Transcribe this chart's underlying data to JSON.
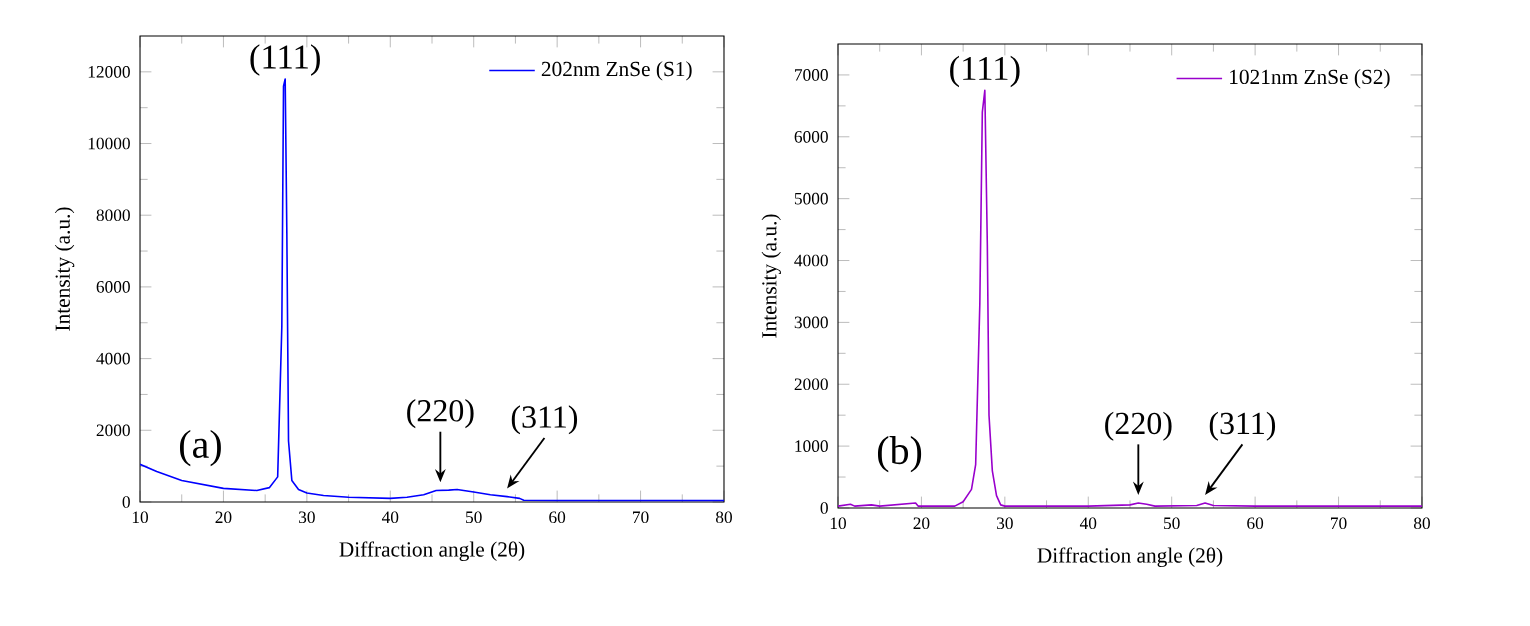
{
  "chart_data": [
    {
      "type": "line",
      "xlabel": "Diffraction angle (2θ)",
      "ylabel": "Intensity (a.u.)",
      "xlim": [
        10,
        80
      ],
      "ylim": [
        0,
        13000
      ],
      "xticks": [
        10,
        20,
        30,
        40,
        50,
        60,
        70,
        80
      ],
      "yticks": [
        0,
        2000,
        4000,
        6000,
        8000,
        10000,
        12000
      ],
      "legend": "top right",
      "grid": false,
      "marker": "none",
      "series": [
        {
          "name": "202nm ZnSe (S1)",
          "color": "#0000ff",
          "x": [
            10,
            12,
            15,
            20,
            24,
            25.5,
            26.5,
            27,
            27.2,
            27.4,
            27.6,
            27.8,
            28.2,
            29,
            30,
            32,
            35,
            40,
            42,
            44,
            45.5,
            47,
            48,
            50,
            52,
            54,
            55.5,
            56,
            60,
            70,
            80
          ],
          "values": [
            1050,
            850,
            600,
            380,
            320,
            400,
            700,
            4900,
            11600,
            11800,
            7500,
            1700,
            600,
            350,
            250,
            180,
            130,
            100,
            130,
            200,
            320,
            330,
            350,
            280,
            200,
            150,
            100,
            50,
            40,
            40,
            40
          ]
        }
      ],
      "annotations": [
        {
          "text": "(111)",
          "x": 27.4,
          "y": 11800
        },
        "(a)",
        {
          "text": "(220)",
          "x": 46,
          "y": 323
        },
        {
          "text": "(311)",
          "x": 54,
          "y": 150
        }
      ]
    },
    {
      "type": "line",
      "xlabel": "Diffraction angle (2θ)",
      "ylabel": "Intensity (a.u.)",
      "xlim": [
        10,
        80
      ],
      "ylim": [
        0,
        7500
      ],
      "xticks": [
        10,
        20,
        30,
        40,
        50,
        60,
        70,
        80
      ],
      "yticks": [
        0,
        1000,
        2000,
        3000,
        4000,
        5000,
        6000,
        7000
      ],
      "legend": "top right",
      "grid": false,
      "marker": "none",
      "series": [
        {
          "name": "1021nm ZnSe (S2)",
          "color": "#9900cc",
          "x": [
            10,
            11.5,
            12,
            14,
            15,
            19.3,
            19.6,
            24,
            25,
            26,
            26.5,
            27,
            27.3,
            27.6,
            27.9,
            28.1,
            28.5,
            29,
            29.5,
            30,
            40,
            45,
            46,
            47,
            48,
            53,
            54,
            55,
            60,
            80
          ],
          "values": [
            30,
            60,
            30,
            50,
            30,
            80,
            30,
            30,
            100,
            300,
            700,
            3300,
            6400,
            6750,
            4250,
            1500,
            600,
            200,
            50,
            30,
            30,
            50,
            80,
            60,
            30,
            40,
            80,
            40,
            30,
            30
          ]
        }
      ],
      "annotations": [
        {
          "text": "(111)",
          "x": 27.6,
          "y": 6750
        },
        "(b)",
        {
          "text": "(220)",
          "x": 46,
          "y": 80
        },
        {
          "text": "(311)",
          "x": 54,
          "y": 80
        }
      ]
    }
  ]
}
